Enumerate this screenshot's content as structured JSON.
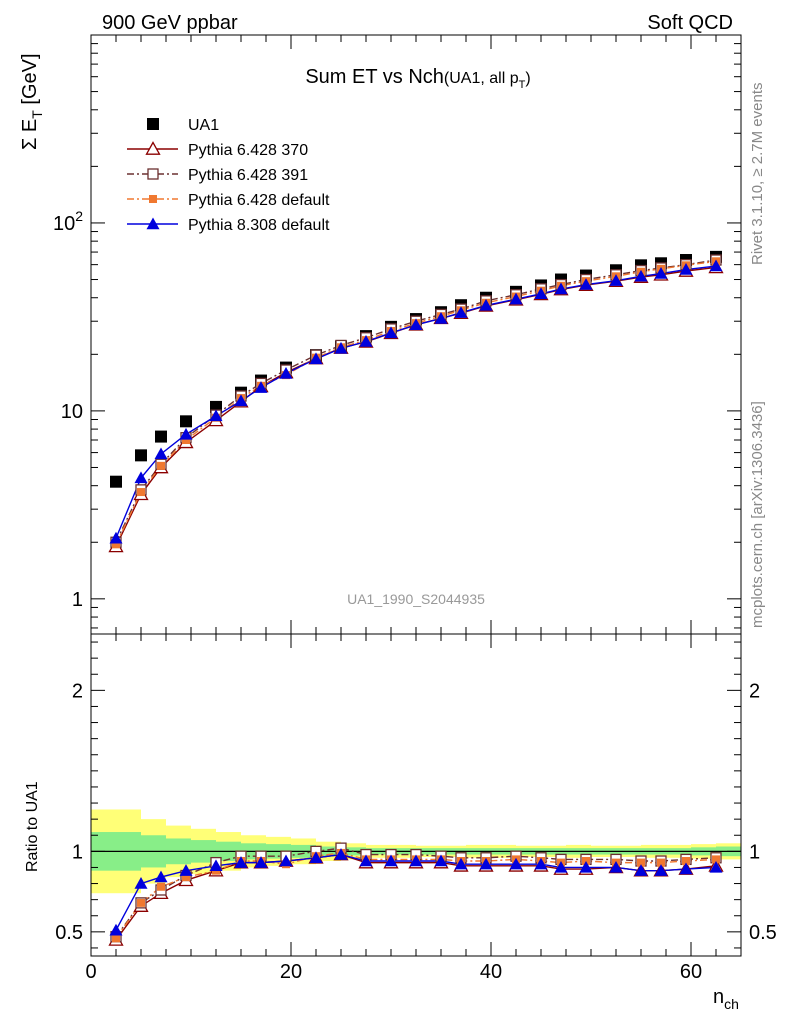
{
  "header": {
    "left": "900 GeV ppbar",
    "right": "Soft QCD"
  },
  "side_labels": {
    "rivet": "Rivet 3.1.10, ≥ 2.7M events",
    "mcplots": "mcplots.cern.ch [arXiv:1306.3436]"
  },
  "chart_data": [
    {
      "type": "scatter",
      "title_main": "Sum ET vs Nch",
      "title_sub": "(UA1, all p",
      "title_sub_index": "T",
      "title_close": ")",
      "ylabel": "Σ E",
      "ylabel_sub": "T",
      "ylabel_unit": " [GeV]",
      "watermark": "UA1_1990_S2044935",
      "yscale": "log",
      "ylim": [
        0.65,
        1000
      ],
      "xlim": [
        0,
        65
      ],
      "y_ticks": [
        {
          "value": 1,
          "label": "1"
        },
        {
          "value": 10,
          "label": "10"
        },
        {
          "value": 100,
          "label": "10",
          "sup": "2"
        }
      ],
      "legend_position": "top-left",
      "x": [
        2.5,
        5,
        7,
        9.5,
        12.5,
        15,
        17,
        19.5,
        22.5,
        25,
        27.5,
        30,
        32.5,
        35,
        37,
        39.5,
        42.5,
        45,
        47,
        49.5,
        52.5,
        55,
        57,
        59.5,
        62.5
      ],
      "series": [
        {
          "name": "UA1",
          "color": "#000000",
          "marker": "square-filled",
          "line": "none",
          "values": [
            4.2,
            5.8,
            7.3,
            8.8,
            10.5,
            12.5,
            14.5,
            17.0,
            19.8,
            22.0,
            25.0,
            28.0,
            30.8,
            33.5,
            36.5,
            40.0,
            43.0,
            46.5,
            50.0,
            52.5,
            56.0,
            59.5,
            61.0,
            63.5,
            66.0
          ]
        },
        {
          "name": "Pythia 6.428 370",
          "color": "#8b0000",
          "marker": "triangle-open",
          "line": "solid",
          "values": [
            1.9,
            3.6,
            5.0,
            6.8,
            8.9,
            11.2,
            13.5,
            16.0,
            19.0,
            21.6,
            23.3,
            25.9,
            28.7,
            31.1,
            33.1,
            36.2,
            39.0,
            41.7,
            44.2,
            46.7,
            49.0,
            51.5,
            53.0,
            55.5,
            58.0
          ]
        },
        {
          "name": "Pythia 6.428 391",
          "color": "#6b3030",
          "marker": "square-open",
          "line": "dashdot",
          "values": [
            2.0,
            3.8,
            5.2,
            7.2,
            9.5,
            12.0,
            14.0,
            16.5,
            19.8,
            22.3,
            24.5,
            27.3,
            30.0,
            32.6,
            34.8,
            38.5,
            41.5,
            44.6,
            47.0,
            50.0,
            53.0,
            55.8,
            57.6,
            60.0,
            63.5
          ]
        },
        {
          "name": "Pythia 6.428 default",
          "color": "#f07830",
          "marker": "square-filled-small",
          "line": "dashdot",
          "values": [
            1.95,
            3.7,
            5.1,
            7.0,
            9.2,
            11.7,
            13.6,
            15.5,
            19.2,
            21.8,
            23.8,
            26.6,
            29.3,
            31.9,
            34.3,
            37.6,
            40.6,
            43.6,
            46.3,
            49.0,
            52.0,
            55.0,
            57.0,
            59.5,
            62.5
          ]
        },
        {
          "name": "Pythia 8.308 default",
          "color": "#0000dd",
          "marker": "triangle-filled",
          "line": "solid",
          "values": [
            2.1,
            4.4,
            5.9,
            7.5,
            9.4,
            11.3,
            13.3,
            15.8,
            18.9,
            21.5,
            23.4,
            26.0,
            28.7,
            31.0,
            33.3,
            36.4,
            39.3,
            42.0,
            44.5,
            47.0,
            49.3,
            52.0,
            53.8,
            56.5,
            59.0
          ]
        }
      ]
    },
    {
      "type": "scatter",
      "ylabel": "Ratio to UA1",
      "xlabel": "n",
      "xlabel_sub": "ch",
      "xlim": [
        0,
        65
      ],
      "ylim": [
        0.35,
        2.35
      ],
      "x_ticks": [
        {
          "value": 0,
          "label": "0"
        },
        {
          "value": 20,
          "label": "20"
        },
        {
          "value": 40,
          "label": "40"
        },
        {
          "value": 60,
          "label": "60"
        }
      ],
      "y_ticks": [
        {
          "value": 0.5,
          "label": "0.5"
        },
        {
          "value": 1,
          "label": "1"
        },
        {
          "value": 2,
          "label": "2"
        }
      ],
      "reference_line": 1,
      "bands": {
        "edges": [
          0,
          5,
          7.5,
          10,
          12.5,
          15,
          17.5,
          20,
          22.5,
          25,
          27.5,
          30,
          32.5,
          35,
          37.5,
          40,
          42.5,
          45,
          47.5,
          50,
          52.5,
          55,
          57.5,
          60,
          62.5,
          65
        ],
        "yellow_color": "#ffff77",
        "green_color": "#88ee88",
        "yellow_half": [
          0.26,
          0.2,
          0.16,
          0.14,
          0.12,
          0.1,
          0.09,
          0.08,
          0.06,
          0.05,
          0.04,
          0.04,
          0.035,
          0.035,
          0.04,
          0.04,
          0.035,
          0.035,
          0.04,
          0.035,
          0.035,
          0.04,
          0.04,
          0.045,
          0.05
        ],
        "green_half": [
          0.12,
          0.1,
          0.08,
          0.07,
          0.06,
          0.05,
          0.045,
          0.04,
          0.03,
          0.025,
          0.02,
          0.02,
          0.02,
          0.02,
          0.02,
          0.02,
          0.02,
          0.02,
          0.02,
          0.02,
          0.02,
          0.02,
          0.02,
          0.025,
          0.03
        ]
      },
      "x": [
        2.5,
        5,
        7,
        9.5,
        12.5,
        15,
        17,
        19.5,
        22.5,
        25,
        27.5,
        30,
        32.5,
        35,
        37,
        39.5,
        42.5,
        45,
        47,
        49.5,
        52.5,
        55,
        57,
        59.5,
        62.5
      ],
      "series": [
        {
          "name": "Pythia 6.428 370",
          "color": "#8b0000",
          "marker": "triangle-open",
          "line": "solid",
          "values": [
            0.45,
            0.66,
            0.74,
            0.82,
            0.88,
            0.93,
            0.93,
            0.94,
            0.96,
            0.98,
            0.93,
            0.93,
            0.93,
            0.93,
            0.91,
            0.91,
            0.91,
            0.91,
            0.89,
            0.89,
            0.9,
            0.88,
            0.88,
            0.89,
            0.91
          ]
        },
        {
          "name": "Pythia 6.428 391",
          "color": "#6b3030",
          "marker": "square-open",
          "line": "dashdot",
          "values": [
            0.47,
            0.68,
            0.76,
            0.85,
            0.93,
            0.97,
            0.97,
            0.97,
            1.0,
            1.02,
            0.98,
            0.98,
            0.98,
            0.97,
            0.96,
            0.96,
            0.97,
            0.96,
            0.95,
            0.95,
            0.95,
            0.94,
            0.94,
            0.95,
            0.96
          ]
        },
        {
          "name": "Pythia 6.428 default",
          "color": "#f07830",
          "marker": "square-filled-small",
          "line": "dashdot",
          "values": [
            0.46,
            0.68,
            0.78,
            0.84,
            0.88,
            0.94,
            0.94,
            0.92,
            0.97,
            0.99,
            0.95,
            0.95,
            0.95,
            0.95,
            0.94,
            0.94,
            0.95,
            0.94,
            0.93,
            0.94,
            0.93,
            0.93,
            0.93,
            0.94,
            0.95
          ]
        },
        {
          "name": "Pythia 8.308 default",
          "color": "#0000dd",
          "marker": "triangle-filled",
          "line": "solid",
          "values": [
            0.51,
            0.8,
            0.84,
            0.88,
            0.91,
            0.93,
            0.93,
            0.94,
            0.96,
            0.98,
            0.94,
            0.94,
            0.94,
            0.94,
            0.92,
            0.92,
            0.92,
            0.92,
            0.9,
            0.9,
            0.9,
            0.88,
            0.88,
            0.89,
            0.9
          ]
        }
      ]
    }
  ]
}
